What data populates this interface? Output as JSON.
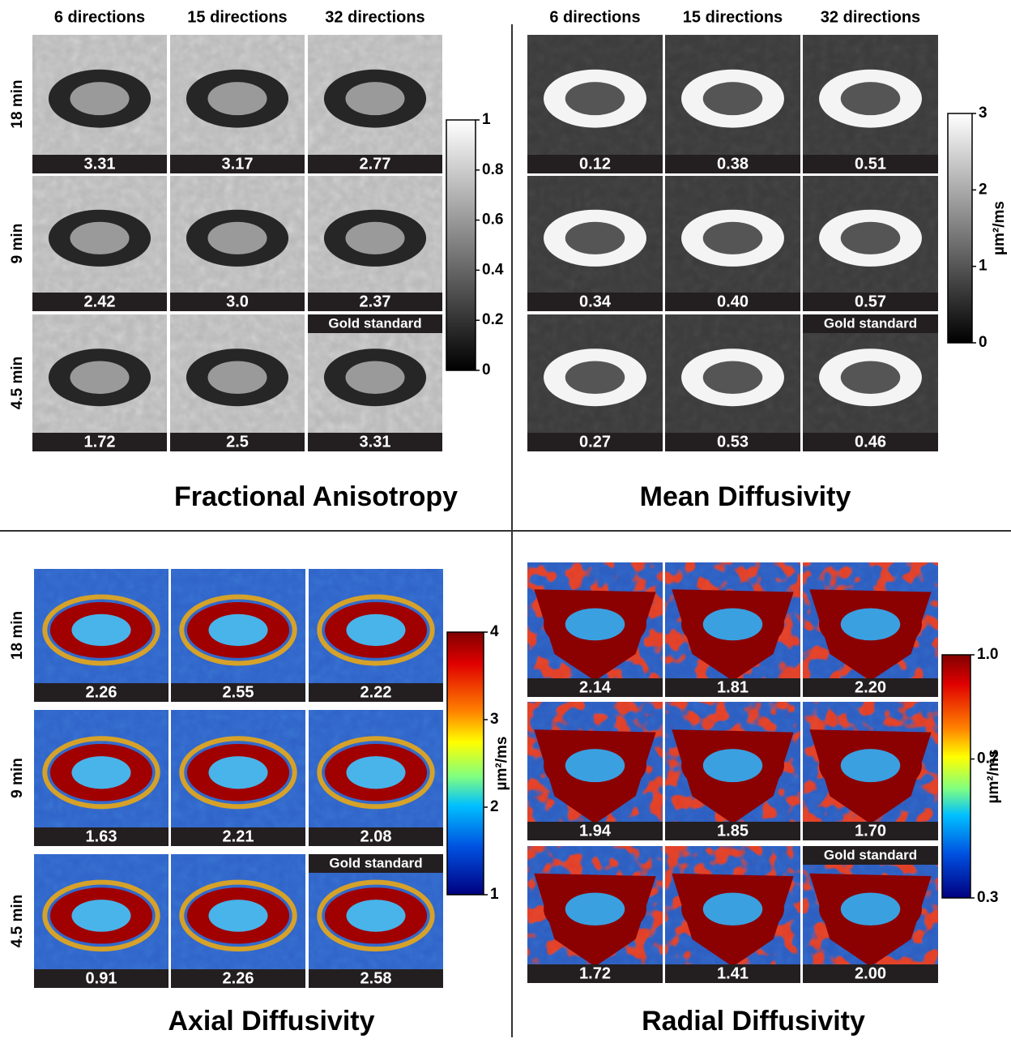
{
  "column_headers": [
    "6 directions",
    "15 directions",
    "32 directions"
  ],
  "row_labels": [
    "18 min",
    "9 min",
    "4.5 min"
  ],
  "gold_label": "Gold standard",
  "unit": "µm²/ms",
  "panels": [
    {
      "title": "Fractional Anisotropy",
      "values": [
        [
          "3.31",
          "3.17",
          "2.77"
        ],
        [
          "2.42",
          "3.0",
          "2.37"
        ],
        [
          "1.72",
          "2.5",
          "3.31"
        ]
      ],
      "colorbar_ticks": [
        "1",
        "0.8",
        "0.6",
        "0.4",
        "0.2",
        "0"
      ]
    },
    {
      "title": "Mean Diffusivity",
      "values": [
        [
          "0.12",
          "0.38",
          "0.51"
        ],
        [
          "0.34",
          "0.40",
          "0.57"
        ],
        [
          "0.27",
          "0.53",
          "0.46"
        ]
      ],
      "colorbar_ticks": [
        "3",
        "2",
        "1",
        "0"
      ]
    },
    {
      "title": "Axial Diffusivity",
      "values": [
        [
          "2.26",
          "2.55",
          "2.22"
        ],
        [
          "1.63",
          "2.21",
          "2.08"
        ],
        [
          "0.91",
          "2.26",
          "2.58"
        ]
      ],
      "colorbar_ticks": [
        "4",
        "3",
        "2",
        "1"
      ]
    },
    {
      "title": "Radial Diffusivity",
      "values": [
        [
          "2.14",
          "1.81",
          "2.20"
        ],
        [
          "1.94",
          "1.85",
          "1.70"
        ],
        [
          "1.72",
          "1.41",
          "2.00"
        ]
      ],
      "colorbar_ticks": [
        "1.0",
        "0.7",
        "0.3"
      ]
    }
  ]
}
